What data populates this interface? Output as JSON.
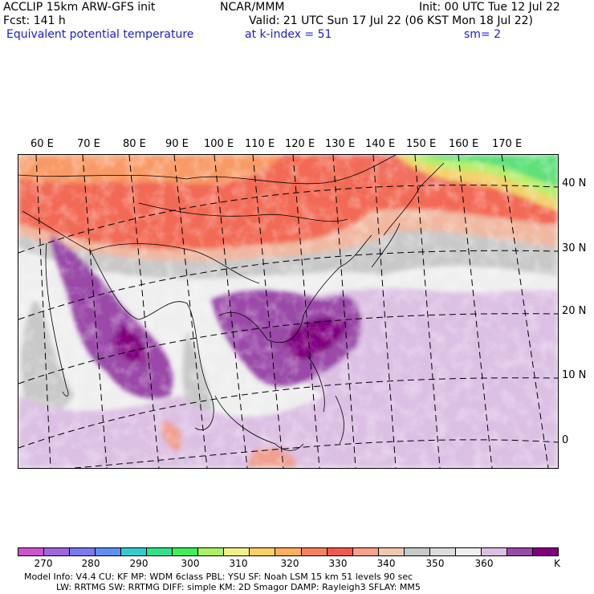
{
  "header": {
    "model": "ACCLIP 15km ARW-GFS init",
    "forecast": "Fcst:  141 h",
    "field": "Equivalent potential temperature",
    "center": "NCAR/MMM",
    "valid": "Valid: 21 UTC Sun 17 Jul 22 (06 KST Mon 18 Jul 22)",
    "level": "at k-index =  51",
    "init": "Init: 00 UTC Tue 12 Jul 22",
    "smoothing": "sm= 2"
  },
  "map": {
    "lon_labels": [
      "60 E",
      "70 E",
      "80 E",
      "90 E",
      "100 E",
      "110 E",
      "120 E",
      "130 E",
      "140 E",
      "150 E",
      "160 E",
      "170 E"
    ],
    "lat_labels": [
      "40 N",
      "30 N",
      "20 N",
      "10 N",
      "0"
    ]
  },
  "colorbar": {
    "unit": "K",
    "tick_labels": [
      "270",
      "280",
      "290",
      "300",
      "310",
      "320",
      "330",
      "340",
      "350",
      "360"
    ],
    "colors": [
      "#cc55cc",
      "#a066dd",
      "#7a7aee",
      "#5f8fee",
      "#33cccc",
      "#33e08a",
      "#44ee55",
      "#aaf066",
      "#f0f088",
      "#f8d066",
      "#f8b060",
      "#f88060",
      "#f05a50",
      "#f8a088",
      "#f0c8b0",
      "#c8c8c8",
      "#dcdcdc",
      "#efefef",
      "#dcc0e4",
      "#9a4aa8",
      "#800080"
    ]
  },
  "footer": {
    "line1": "Model Info: V4.4      CU: KF       MP: WDM 6class   PBL: YSU       SF: Noah LSM      15 km    51 levels    90 sec",
    "line2": "LW: RRTMG    SW: RRTMG   DIFF: simple KM: 2D Smagor DAMP: Rayleigh3   SFLAY: MM5"
  }
}
